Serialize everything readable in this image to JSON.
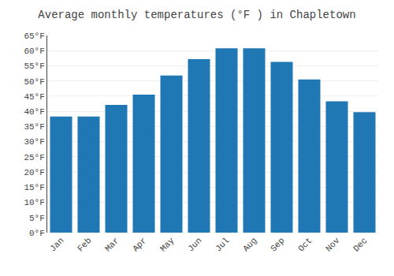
{
  "chart_data": {
    "type": "bar",
    "title": "Average monthly temperatures (°F ) in Chapletown",
    "categories": [
      "Jan",
      "Feb",
      "Mar",
      "Apr",
      "May",
      "Jun",
      "Jul",
      "Aug",
      "Sep",
      "Oct",
      "Nov",
      "Dec"
    ],
    "values": [
      38.3,
      38.3,
      42.1,
      45.5,
      51.8,
      57.2,
      60.8,
      60.8,
      56.3,
      50.5,
      43.3,
      39.7
    ],
    "ylim": [
      0,
      65
    ],
    "yticks": [
      {
        "value": 0,
        "label": "0°F"
      },
      {
        "value": 5,
        "label": "5°F"
      },
      {
        "value": 10,
        "label": "10°F"
      },
      {
        "value": 15,
        "label": "15°F"
      },
      {
        "value": 20,
        "label": "20°F"
      },
      {
        "value": 25,
        "label": "25°F"
      },
      {
        "value": 30,
        "label": "30°F"
      },
      {
        "value": 35,
        "label": "35°F"
      },
      {
        "value": 40,
        "label": "40°F"
      },
      {
        "value": 45,
        "label": "45°F"
      },
      {
        "value": 50,
        "label": "50°F"
      },
      {
        "value": 55,
        "label": "55°F"
      },
      {
        "value": 60,
        "label": "60°F"
      },
      {
        "value": 65,
        "label": "65°F"
      }
    ],
    "grid": true
  }
}
